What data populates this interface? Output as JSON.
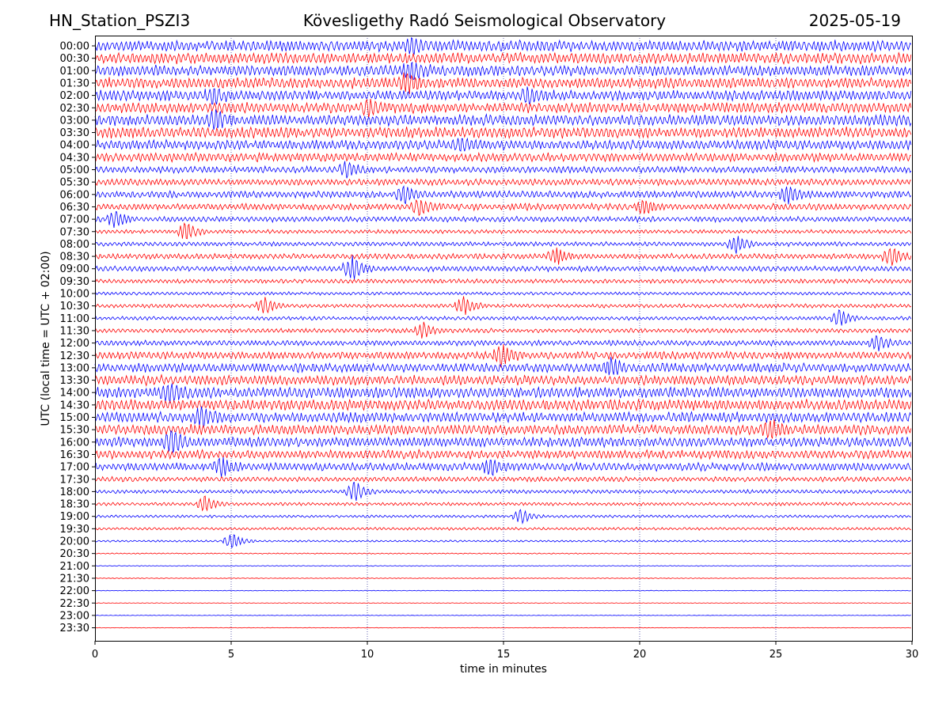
{
  "header": {
    "station": "HN_Station_PSZI3",
    "observatory": "Kövesligethy Radó Seismological Observatory",
    "date": "2025-05-19"
  },
  "chart_data": {
    "type": "line",
    "title": "Kövesligethy Radó Seismological Observatory",
    "xlabel": "time in minutes",
    "ylabel": "UTC (local time = UTC + 02:00)",
    "xlim": [
      0,
      30
    ],
    "x_ticks": [
      "0",
      "5",
      "10",
      "15",
      "20",
      "25",
      "30"
    ],
    "grid": "vertical dotted lines at 5, 10, 15, 20, 25",
    "series_colors": [
      "#0000ff",
      "#ff0000"
    ],
    "row_labels": [
      "00:00",
      "00:30",
      "01:00",
      "01:30",
      "02:00",
      "02:30",
      "03:00",
      "03:30",
      "04:00",
      "04:30",
      "05:00",
      "05:30",
      "06:00",
      "06:30",
      "07:00",
      "07:30",
      "08:00",
      "08:30",
      "09:00",
      "09:30",
      "10:00",
      "10:30",
      "11:00",
      "11:30",
      "12:00",
      "12:30",
      "13:00",
      "13:30",
      "14:00",
      "14:30",
      "15:00",
      "15:30",
      "16:00",
      "16:30",
      "17:00",
      "17:30",
      "18:00",
      "18:30",
      "19:00",
      "19:30",
      "20:00",
      "20:30",
      "21:00",
      "21:30",
      "22:00",
      "22:30",
      "23:00",
      "23:30"
    ],
    "row_amplitude": [
      1.0,
      1.0,
      1.0,
      1.0,
      0.95,
      0.95,
      1.0,
      1.0,
      0.9,
      0.8,
      0.6,
      0.6,
      0.65,
      0.6,
      0.5,
      0.35,
      0.4,
      0.5,
      0.5,
      0.4,
      0.3,
      0.35,
      0.35,
      0.4,
      0.5,
      0.7,
      0.85,
      0.9,
      1.0,
      1.0,
      0.95,
      0.95,
      0.9,
      0.8,
      0.75,
      0.45,
      0.35,
      0.3,
      0.25,
      0.25,
      0.18,
      0.1,
      0.08,
      0.07,
      0.06,
      0.06,
      0.05,
      0.05
    ],
    "bursts": [
      {
        "row": 0,
        "minute": 11.5,
        "amp": 1.2
      },
      {
        "row": 2,
        "minute": 11.5,
        "amp": 1.6
      },
      {
        "row": 3,
        "minute": 11.3,
        "amp": 1.5
      },
      {
        "row": 4,
        "minute": 4.2,
        "amp": 1.3
      },
      {
        "row": 4,
        "minute": 15.8,
        "amp": 1.2
      },
      {
        "row": 5,
        "minute": 9.9,
        "amp": 1.2
      },
      {
        "row": 6,
        "minute": 4.3,
        "amp": 1.5
      },
      {
        "row": 8,
        "minute": 13.3,
        "amp": 1.2
      },
      {
        "row": 10,
        "minute": 9.1,
        "amp": 1.4
      },
      {
        "row": 12,
        "minute": 11.2,
        "amp": 1.6
      },
      {
        "row": 12,
        "minute": 25.3,
        "amp": 1.5
      },
      {
        "row": 13,
        "minute": 11.8,
        "amp": 1.5
      },
      {
        "row": 13,
        "minute": 20.0,
        "amp": 1.3
      },
      {
        "row": 14,
        "minute": 0.6,
        "amp": 1.5
      },
      {
        "row": 15,
        "minute": 3.2,
        "amp": 1.8
      },
      {
        "row": 16,
        "minute": 23.4,
        "amp": 1.6
      },
      {
        "row": 17,
        "minute": 16.8,
        "amp": 1.4
      },
      {
        "row": 17,
        "minute": 29.1,
        "amp": 1.6
      },
      {
        "row": 18,
        "minute": 9.3,
        "amp": 2.2
      },
      {
        "row": 21,
        "minute": 13.4,
        "amp": 1.8
      },
      {
        "row": 21,
        "minute": 6.1,
        "amp": 1.5
      },
      {
        "row": 22,
        "minute": 27.2,
        "amp": 1.6
      },
      {
        "row": 23,
        "minute": 11.9,
        "amp": 1.4
      },
      {
        "row": 24,
        "minute": 28.6,
        "amp": 1.4
      },
      {
        "row": 25,
        "minute": 14.8,
        "amp": 2.0
      },
      {
        "row": 26,
        "minute": 18.8,
        "amp": 1.5
      },
      {
        "row": 28,
        "minute": 2.6,
        "amp": 1.5
      },
      {
        "row": 30,
        "minute": 3.8,
        "amp": 1.6
      },
      {
        "row": 31,
        "minute": 24.7,
        "amp": 1.5
      },
      {
        "row": 32,
        "minute": 2.7,
        "amp": 2.0
      },
      {
        "row": 34,
        "minute": 4.5,
        "amp": 1.6
      },
      {
        "row": 34,
        "minute": 14.4,
        "amp": 1.4
      },
      {
        "row": 36,
        "minute": 9.4,
        "amp": 2.0
      },
      {
        "row": 37,
        "minute": 3.9,
        "amp": 1.6
      },
      {
        "row": 38,
        "minute": 15.5,
        "amp": 1.4
      },
      {
        "row": 40,
        "minute": 4.9,
        "amp": 1.5
      }
    ]
  }
}
